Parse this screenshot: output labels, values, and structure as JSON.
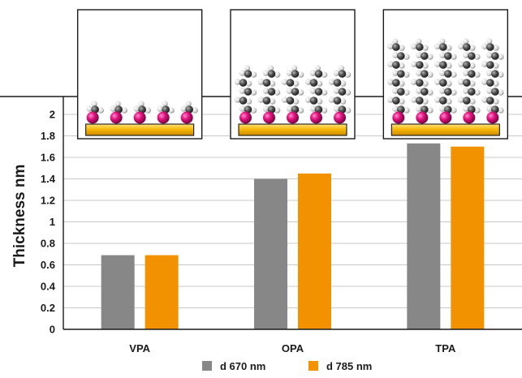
{
  "chart_data": {
    "type": "bar",
    "categories": [
      "VPA",
      "OPA",
      "TPA"
    ],
    "series": [
      {
        "name": "d 670 nm",
        "color": "#878787",
        "values": [
          0.69,
          1.4,
          1.73
        ]
      },
      {
        "name": "d 785 nm",
        "color": "#f39200",
        "values": [
          0.69,
          1.45,
          1.7
        ]
      }
    ],
    "title": "",
    "xlabel": "",
    "ylabel": "Thickness nm",
    "ylim": [
      0,
      2
    ],
    "yticks": [
      "0",
      "0.2",
      "0.4",
      "0.6",
      "0.8",
      "1",
      "1.2",
      "1.4",
      "1.6",
      "1.8",
      "2"
    ],
    "grid": true,
    "legend_position": "bottom",
    "insets": [
      {
        "category": "VPA",
        "chain_length": 1,
        "molecule_count": 5
      },
      {
        "category": "OPA",
        "chain_length": 5,
        "molecule_count": 5
      },
      {
        "category": "TPA",
        "chain_length": 8,
        "molecule_count": 5
      }
    ],
    "colors": {
      "head_group": "#e0157f",
      "substrate": "#f6b400",
      "carbon": "#4a4a4a",
      "hydrogen": "#e6e6e6"
    }
  }
}
